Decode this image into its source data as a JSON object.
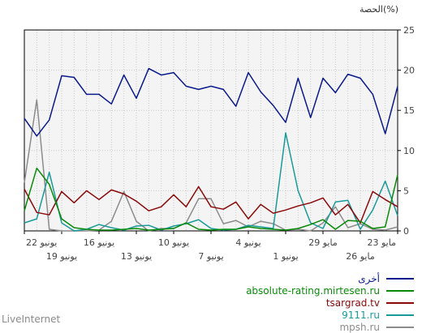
{
  "chart_data": {
    "type": "line",
    "ylabel": "الحصة(%)",
    "ylim": [
      0,
      25
    ],
    "yticks": [
      "0",
      "5",
      "10",
      "15",
      "20",
      "25"
    ],
    "grid": true,
    "xtick_labels": [
      {
        "index": 0,
        "label": "22 يونيو",
        "row": 1
      },
      {
        "index": 3,
        "label": "19 يونيو",
        "row": 2
      },
      {
        "index": 6,
        "label": "16 يونيو",
        "row": 1
      },
      {
        "index": 9,
        "label": "13 يونيو",
        "row": 2
      },
      {
        "index": 12,
        "label": "10 يونيو",
        "row": 1
      },
      {
        "index": 15,
        "label": "7 يونيو",
        "row": 2
      },
      {
        "index": 18,
        "label": "4 يونيو",
        "row": 1
      },
      {
        "index": 21,
        "label": "1 يونيو",
        "row": 2
      },
      {
        "index": 24,
        "label": "29 مايو",
        "row": 1
      },
      {
        "index": 27,
        "label": "26 مايو",
        "row": 2
      },
      {
        "index": 30,
        "label": "23 مايو",
        "row": 1
      }
    ],
    "series": [
      {
        "name": "أخرى",
        "color": "#0a1a8c",
        "values": [
          14.0,
          11.8,
          13.8,
          19.3,
          19.1,
          17.0,
          17.0,
          15.8,
          19.4,
          16.5,
          20.2,
          19.4,
          19.7,
          18.0,
          17.6,
          18.0,
          17.6,
          15.5,
          19.7,
          17.3,
          15.6,
          13.5,
          19.0,
          14.1,
          19.0,
          17.2,
          19.5,
          19.0,
          17.0,
          12.1,
          18.0
        ]
      },
      {
        "name": "absolute-rating.mirtesen.ru",
        "color": "#0a8a0a",
        "values": [
          2.5,
          7.8,
          5.8,
          1.5,
          0.4,
          0.2,
          0.1,
          0.1,
          0.2,
          0.3,
          0.1,
          0.2,
          0.3,
          1.0,
          0.2,
          0.1,
          0.2,
          0.2,
          0.5,
          0.3,
          0.2,
          0.1,
          0.3,
          0.8,
          1.4,
          0.2,
          1.3,
          1.2,
          0.3,
          0.5,
          7.0
        ]
      },
      {
        "name": "tsargrad.tv",
        "color": "#8a0a0a",
        "values": [
          5.2,
          2.3,
          2.0,
          4.9,
          3.5,
          5.0,
          3.9,
          5.1,
          4.6,
          3.7,
          2.5,
          3.0,
          4.5,
          3.0,
          5.5,
          3.0,
          2.7,
          3.6,
          1.5,
          3.3,
          2.2,
          2.6,
          3.1,
          3.5,
          4.1,
          2.0,
          3.3,
          1.0,
          4.9,
          3.9,
          3.0
        ]
      },
      {
        "name": "9111.ru",
        "color": "#1a9a9a",
        "values": [
          1.0,
          1.5,
          7.3,
          1.0,
          0.0,
          0.2,
          0.8,
          0.4,
          0.1,
          0.6,
          0.7,
          0.1,
          0.6,
          0.9,
          1.4,
          0.3,
          0.1,
          0.2,
          0.7,
          0.5,
          0.3,
          12.2,
          5.0,
          1.0,
          0.3,
          3.6,
          3.8,
          0.2,
          2.6,
          6.2,
          1.9
        ]
      },
      {
        "name": "mpsh.ru",
        "color": "#8c8c8c",
        "values": [
          6.0,
          16.3,
          0.2,
          0.0,
          0.0,
          0.0,
          0.1,
          1.2,
          4.9,
          1.2,
          0.0,
          0.3,
          0.3,
          1.0,
          4.0,
          4.0,
          0.9,
          1.3,
          0.5,
          1.2,
          0.9,
          0.1,
          0.2,
          0.0,
          1.0,
          3.0,
          0.4,
          0.9,
          0.2,
          0.1,
          0.5
        ]
      }
    ]
  },
  "branding": {
    "label": "LiveInternet"
  }
}
